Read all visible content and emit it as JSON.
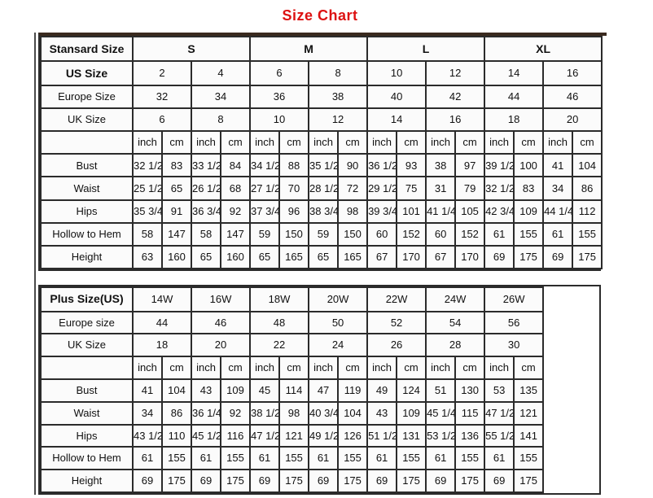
{
  "page": {
    "title": "Size Chart"
  },
  "colors": {
    "title_red": "#dd1111",
    "border_dark": "#2b2b2b",
    "top_bar_brown": "#3a2a1e"
  },
  "standard_table": {
    "corner_label": "Stansard Size",
    "size_header": [
      "S",
      "M",
      "L",
      "XL"
    ],
    "info_rows": [
      {
        "label": "US Size",
        "values": [
          "2",
          "4",
          "6",
          "8",
          "10",
          "12",
          "14",
          "16"
        ]
      },
      {
        "label": "Europe Size",
        "values": [
          "32",
          "34",
          "36",
          "38",
          "40",
          "42",
          "44",
          "46"
        ]
      },
      {
        "label": "UK Size",
        "values": [
          "6",
          "8",
          "10",
          "12",
          "14",
          "16",
          "18",
          "20"
        ]
      }
    ],
    "units": [
      "inch",
      "cm",
      "inch",
      "cm",
      "inch",
      "cm",
      "inch",
      "cm",
      "inch",
      "cm",
      "inch",
      "cm",
      "inch",
      "cm",
      "inch",
      "cm"
    ],
    "measure_rows": [
      {
        "label": "Bust",
        "values": [
          "32 1/2",
          "83",
          "33 1/2",
          "84",
          "34 1/2",
          "88",
          "35 1/2",
          "90",
          "36 1/2",
          "93",
          "38",
          "97",
          "39 1/2",
          "100",
          "41",
          "104"
        ]
      },
      {
        "label": "Waist",
        "values": [
          "25 1/2",
          "65",
          "26 1/2",
          "68",
          "27 1/2",
          "70",
          "28 1/2",
          "72",
          "29 1/2",
          "75",
          "31",
          "79",
          "32 1/2",
          "83",
          "34",
          "86"
        ]
      },
      {
        "label": "Hips",
        "values": [
          "35 3/4",
          "91",
          "36 3/4",
          "92",
          "37 3/4",
          "96",
          "38 3/4",
          "98",
          "39 3/4",
          "101",
          "41 1/4",
          "105",
          "42 3/4",
          "109",
          "44 1/4",
          "112"
        ]
      },
      {
        "label": "Hollow to Hem",
        "values": [
          "58",
          "147",
          "58",
          "147",
          "59",
          "150",
          "59",
          "150",
          "60",
          "152",
          "60",
          "152",
          "61",
          "155",
          "61",
          "155"
        ]
      },
      {
        "label": "Height",
        "values": [
          "63",
          "160",
          "65",
          "160",
          "65",
          "165",
          "65",
          "165",
          "67",
          "170",
          "67",
          "170",
          "69",
          "175",
          "69",
          "175"
        ]
      }
    ]
  },
  "plus_table": {
    "corner_label": "Plus Size(US)",
    "size_header": [
      "14W",
      "16W",
      "18W",
      "20W",
      "22W",
      "24W",
      "26W"
    ],
    "info_rows": [
      {
        "label": "Europe size",
        "values": [
          "44",
          "46",
          "48",
          "50",
          "52",
          "54",
          "56"
        ]
      },
      {
        "label": "UK Size",
        "values": [
          "18",
          "20",
          "22",
          "24",
          "26",
          "28",
          "30"
        ]
      }
    ],
    "units": [
      "inch",
      "cm",
      "inch",
      "cm",
      "inch",
      "cm",
      "inch",
      "cm",
      "inch",
      "cm",
      "inch",
      "cm",
      "inch",
      "cm"
    ],
    "measure_rows": [
      {
        "label": "Bust",
        "values": [
          "41",
          "104",
          "43",
          "109",
          "45",
          "114",
          "47",
          "119",
          "49",
          "124",
          "51",
          "130",
          "53",
          "135"
        ]
      },
      {
        "label": "Waist",
        "values": [
          "34",
          "86",
          "36 1/4",
          "92",
          "38 1/2",
          "98",
          "40 3/4",
          "104",
          "43",
          "109",
          "45 1/4",
          "115",
          "47 1/2",
          "121"
        ]
      },
      {
        "label": "Hips",
        "values": [
          "43 1/2",
          "110",
          "45 1/2",
          "116",
          "47 1/2",
          "121",
          "49 1/2",
          "126",
          "51 1/2",
          "131",
          "53 1/2",
          "136",
          "55 1/2",
          "141"
        ]
      },
      {
        "label": "Hollow to Hem",
        "values": [
          "61",
          "155",
          "61",
          "155",
          "61",
          "155",
          "61",
          "155",
          "61",
          "155",
          "61",
          "155",
          "61",
          "155"
        ]
      },
      {
        "label": "Height",
        "values": [
          "69",
          "175",
          "69",
          "175",
          "69",
          "175",
          "69",
          "175",
          "69",
          "175",
          "69",
          "175",
          "69",
          "175"
        ]
      }
    ]
  }
}
